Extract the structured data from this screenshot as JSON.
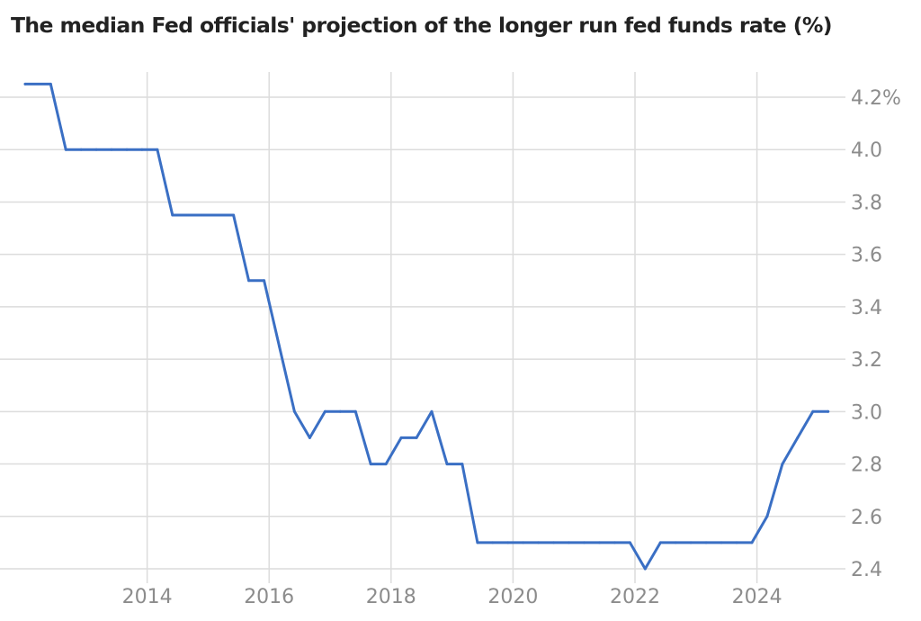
{
  "chart_data": {
    "type": "line",
    "title": "The median Fed officials' projection of the longer run fed funds rate (%)",
    "xlabel": "",
    "ylabel": "",
    "xlim": [
      "2012-03",
      "2025-03"
    ],
    "ylim": [
      2.4,
      4.2
    ],
    "x_ticks": [
      {
        "value": "2014-01",
        "label": "2014"
      },
      {
        "value": "2016-01",
        "label": "2016"
      },
      {
        "value": "2018-01",
        "label": "2018"
      },
      {
        "value": "2020-01",
        "label": "2020"
      },
      {
        "value": "2022-01",
        "label": "2022"
      },
      {
        "value": "2024-01",
        "label": "2024"
      }
    ],
    "y_ticks": [
      {
        "value": 2.4,
        "label": "2.4"
      },
      {
        "value": 2.6,
        "label": "2.6"
      },
      {
        "value": 2.8,
        "label": "2.8"
      },
      {
        "value": 3.0,
        "label": "3.0"
      },
      {
        "value": 3.2,
        "label": "3.2"
      },
      {
        "value": 3.4,
        "label": "3.4"
      },
      {
        "value": 3.6,
        "label": "3.6"
      },
      {
        "value": 3.8,
        "label": "3.8"
      },
      {
        "value": 4.0,
        "label": "4.0"
      },
      {
        "value": 4.2,
        "label": "4.2%"
      }
    ],
    "grid": true,
    "legend": false,
    "series": [
      {
        "color": "#3a6fc4",
        "x": [
          "2012-01",
          "2012-06",
          "2012-09",
          "2012-12",
          "2013-03",
          "2013-06",
          "2013-09",
          "2013-12",
          "2014-03",
          "2014-06",
          "2014-09",
          "2014-12",
          "2015-03",
          "2015-06",
          "2015-09",
          "2015-12",
          "2016-03",
          "2016-06",
          "2016-09",
          "2016-12",
          "2017-03",
          "2017-06",
          "2017-09",
          "2017-12",
          "2018-03",
          "2018-06",
          "2018-09",
          "2018-12",
          "2019-03",
          "2019-06",
          "2019-09",
          "2019-12",
          "2020-03",
          "2020-06",
          "2020-09",
          "2020-12",
          "2021-03",
          "2021-06",
          "2021-09",
          "2021-12",
          "2022-03",
          "2022-06",
          "2022-09",
          "2022-12",
          "2023-03",
          "2023-06",
          "2023-09",
          "2023-12",
          "2024-03",
          "2024-06",
          "2024-09",
          "2024-12",
          "2025-03"
        ],
        "y": [
          4.25,
          4.25,
          4.0,
          4.0,
          4.0,
          4.0,
          4.0,
          4.0,
          4.0,
          3.75,
          3.75,
          3.75,
          3.75,
          3.75,
          3.5,
          3.5,
          3.25,
          3.0,
          2.9,
          3.0,
          3.0,
          3.0,
          2.8,
          2.8,
          2.9,
          2.9,
          3.0,
          2.8,
          2.8,
          2.5,
          2.5,
          2.5,
          2.5,
          2.5,
          2.5,
          2.5,
          2.5,
          2.5,
          2.5,
          2.5,
          2.4,
          2.5,
          2.5,
          2.5,
          2.5,
          2.5,
          2.5,
          2.5,
          2.6,
          2.8,
          2.9,
          3.0,
          3.0
        ]
      }
    ]
  }
}
